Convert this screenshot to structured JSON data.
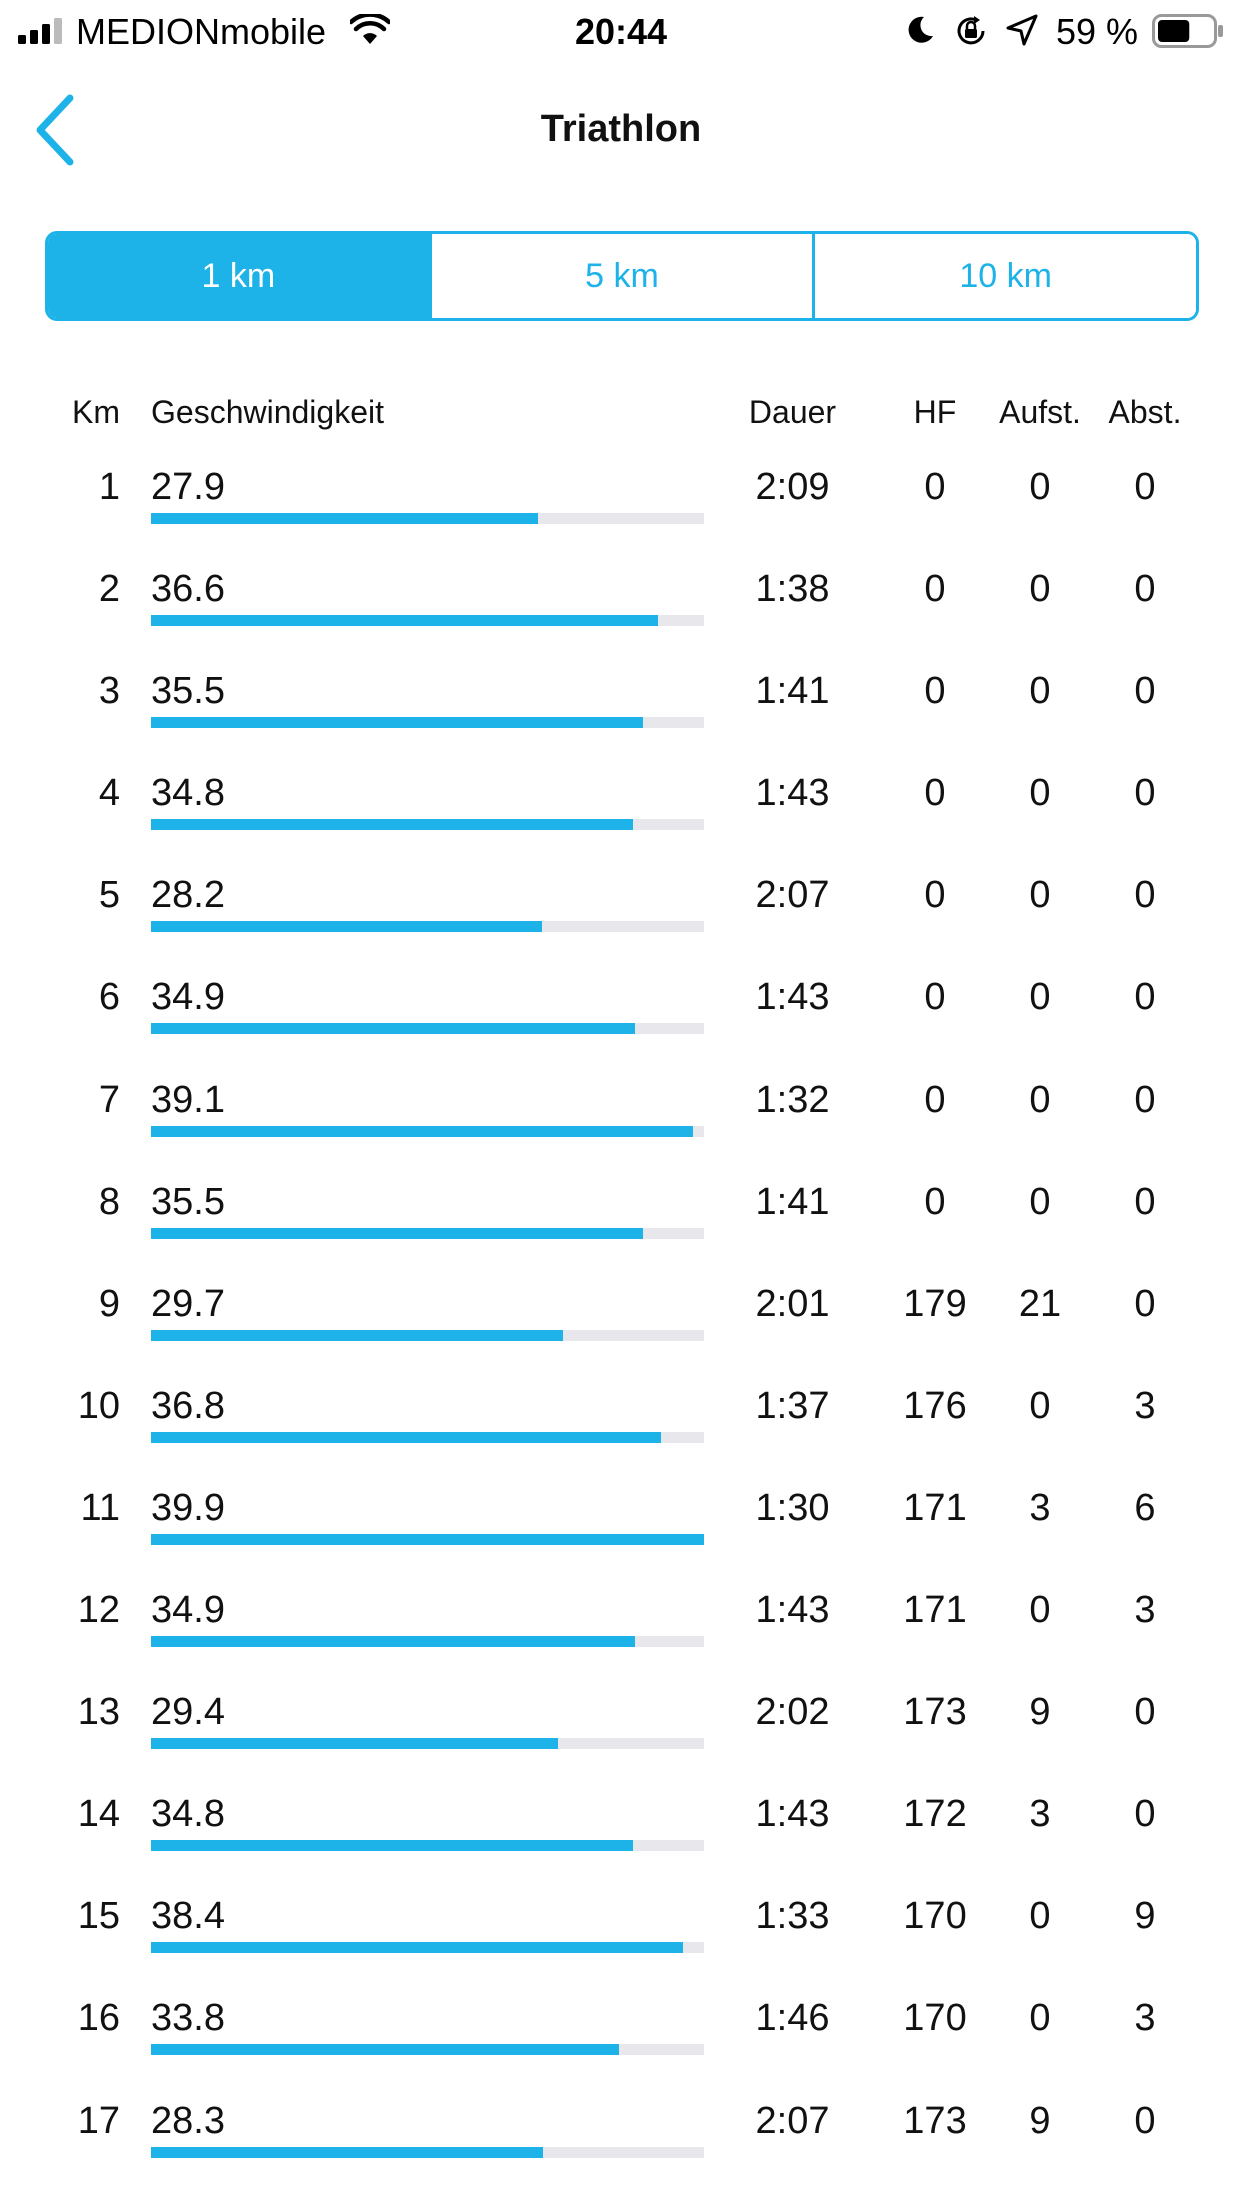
{
  "status_bar": {
    "carrier": "MEDIONmobile",
    "time": "20:44",
    "battery_percent": "59 %",
    "battery_level": 0.59
  },
  "nav": {
    "title": "Triathlon",
    "back_icon": "chevron-left-icon"
  },
  "segments": [
    {
      "label": "1 km",
      "active": true
    },
    {
      "label": "5 km",
      "active": false
    },
    {
      "label": "10 km",
      "active": false
    }
  ],
  "colors": {
    "accent": "#1db2e8",
    "track": "#e8e8ec"
  },
  "table": {
    "headers": {
      "km": "Km",
      "speed": "Geschwindigkeit",
      "duration": "Dauer",
      "hr": "HF",
      "ascent": "Aufst.",
      "descent": "Abst."
    },
    "max_speed": 39.9,
    "rows": [
      {
        "km": "1",
        "speed": "27.9",
        "duration": "2:09",
        "hr": "0",
        "ascent": "0",
        "descent": "0"
      },
      {
        "km": "2",
        "speed": "36.6",
        "duration": "1:38",
        "hr": "0",
        "ascent": "0",
        "descent": "0"
      },
      {
        "km": "3",
        "speed": "35.5",
        "duration": "1:41",
        "hr": "0",
        "ascent": "0",
        "descent": "0"
      },
      {
        "km": "4",
        "speed": "34.8",
        "duration": "1:43",
        "hr": "0",
        "ascent": "0",
        "descent": "0"
      },
      {
        "km": "5",
        "speed": "28.2",
        "duration": "2:07",
        "hr": "0",
        "ascent": "0",
        "descent": "0"
      },
      {
        "km": "6",
        "speed": "34.9",
        "duration": "1:43",
        "hr": "0",
        "ascent": "0",
        "descent": "0"
      },
      {
        "km": "7",
        "speed": "39.1",
        "duration": "1:32",
        "hr": "0",
        "ascent": "0",
        "descent": "0"
      },
      {
        "km": "8",
        "speed": "35.5",
        "duration": "1:41",
        "hr": "0",
        "ascent": "0",
        "descent": "0"
      },
      {
        "km": "9",
        "speed": "29.7",
        "duration": "2:01",
        "hr": "179",
        "ascent": "21",
        "descent": "0"
      },
      {
        "km": "10",
        "speed": "36.8",
        "duration": "1:37",
        "hr": "176",
        "ascent": "0",
        "descent": "3"
      },
      {
        "km": "11",
        "speed": "39.9",
        "duration": "1:30",
        "hr": "171",
        "ascent": "3",
        "descent": "6"
      },
      {
        "km": "12",
        "speed": "34.9",
        "duration": "1:43",
        "hr": "171",
        "ascent": "0",
        "descent": "3"
      },
      {
        "km": "13",
        "speed": "29.4",
        "duration": "2:02",
        "hr": "173",
        "ascent": "9",
        "descent": "0"
      },
      {
        "km": "14",
        "speed": "34.8",
        "duration": "1:43",
        "hr": "172",
        "ascent": "3",
        "descent": "0"
      },
      {
        "km": "15",
        "speed": "38.4",
        "duration": "1:33",
        "hr": "170",
        "ascent": "0",
        "descent": "9"
      },
      {
        "km": "16",
        "speed": "33.8",
        "duration": "1:46",
        "hr": "170",
        "ascent": "0",
        "descent": "3"
      },
      {
        "km": "17",
        "speed": "28.3",
        "duration": "2:07",
        "hr": "173",
        "ascent": "9",
        "descent": "0"
      }
    ]
  }
}
